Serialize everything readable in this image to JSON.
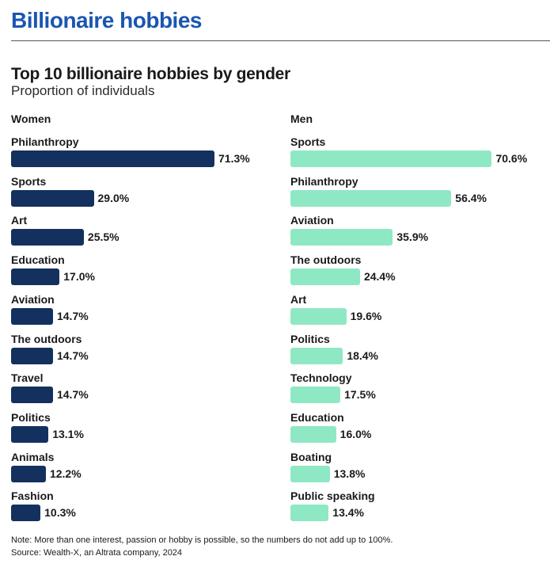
{
  "header": {
    "title": "Billionaire hobbies"
  },
  "chart_data": {
    "type": "bar",
    "orientation": "horizontal",
    "title": "Top 10 billionaire hobbies by gender",
    "subtitle": "Proportion of individuals",
    "xlim": [
      0,
      100
    ],
    "value_suffix": "%",
    "grid": false,
    "panels": [
      {
        "name": "Women",
        "color": "#14305e",
        "categories": [
          "Philanthropy",
          "Sports",
          "Art",
          "Education",
          "Aviation",
          "The outdoors",
          "Travel",
          "Politics",
          "Animals",
          "Fashion"
        ],
        "values": [
          71.3,
          29.0,
          25.5,
          17.0,
          14.7,
          14.7,
          14.7,
          13.1,
          12.2,
          10.3
        ],
        "labels": [
          "71.3%",
          "29.0%",
          "25.5%",
          "17.0%",
          "14.7%",
          "14.7%",
          "14.7%",
          "13.1%",
          "12.2%",
          "10.3%"
        ]
      },
      {
        "name": "Men",
        "color": "#8fe8c4",
        "categories": [
          "Sports",
          "Philanthropy",
          "Aviation",
          "The outdoors",
          "Art",
          "Politics",
          "Technology",
          "Education",
          "Boating",
          "Public speaking"
        ],
        "values": [
          70.6,
          56.4,
          35.9,
          24.4,
          19.6,
          18.4,
          17.5,
          16.0,
          13.8,
          13.4
        ],
        "labels": [
          "70.6%",
          "56.4%",
          "35.9%",
          "24.4%",
          "19.6%",
          "18.4%",
          "17.5%",
          "16.0%",
          "13.8%",
          "13.4%"
        ]
      }
    ],
    "note": "Note: More than one interest, passion or hobby is possible, so the numbers do not add up to 100%.",
    "source": "Source: Wealth-X, an Altrata company, 2024"
  }
}
